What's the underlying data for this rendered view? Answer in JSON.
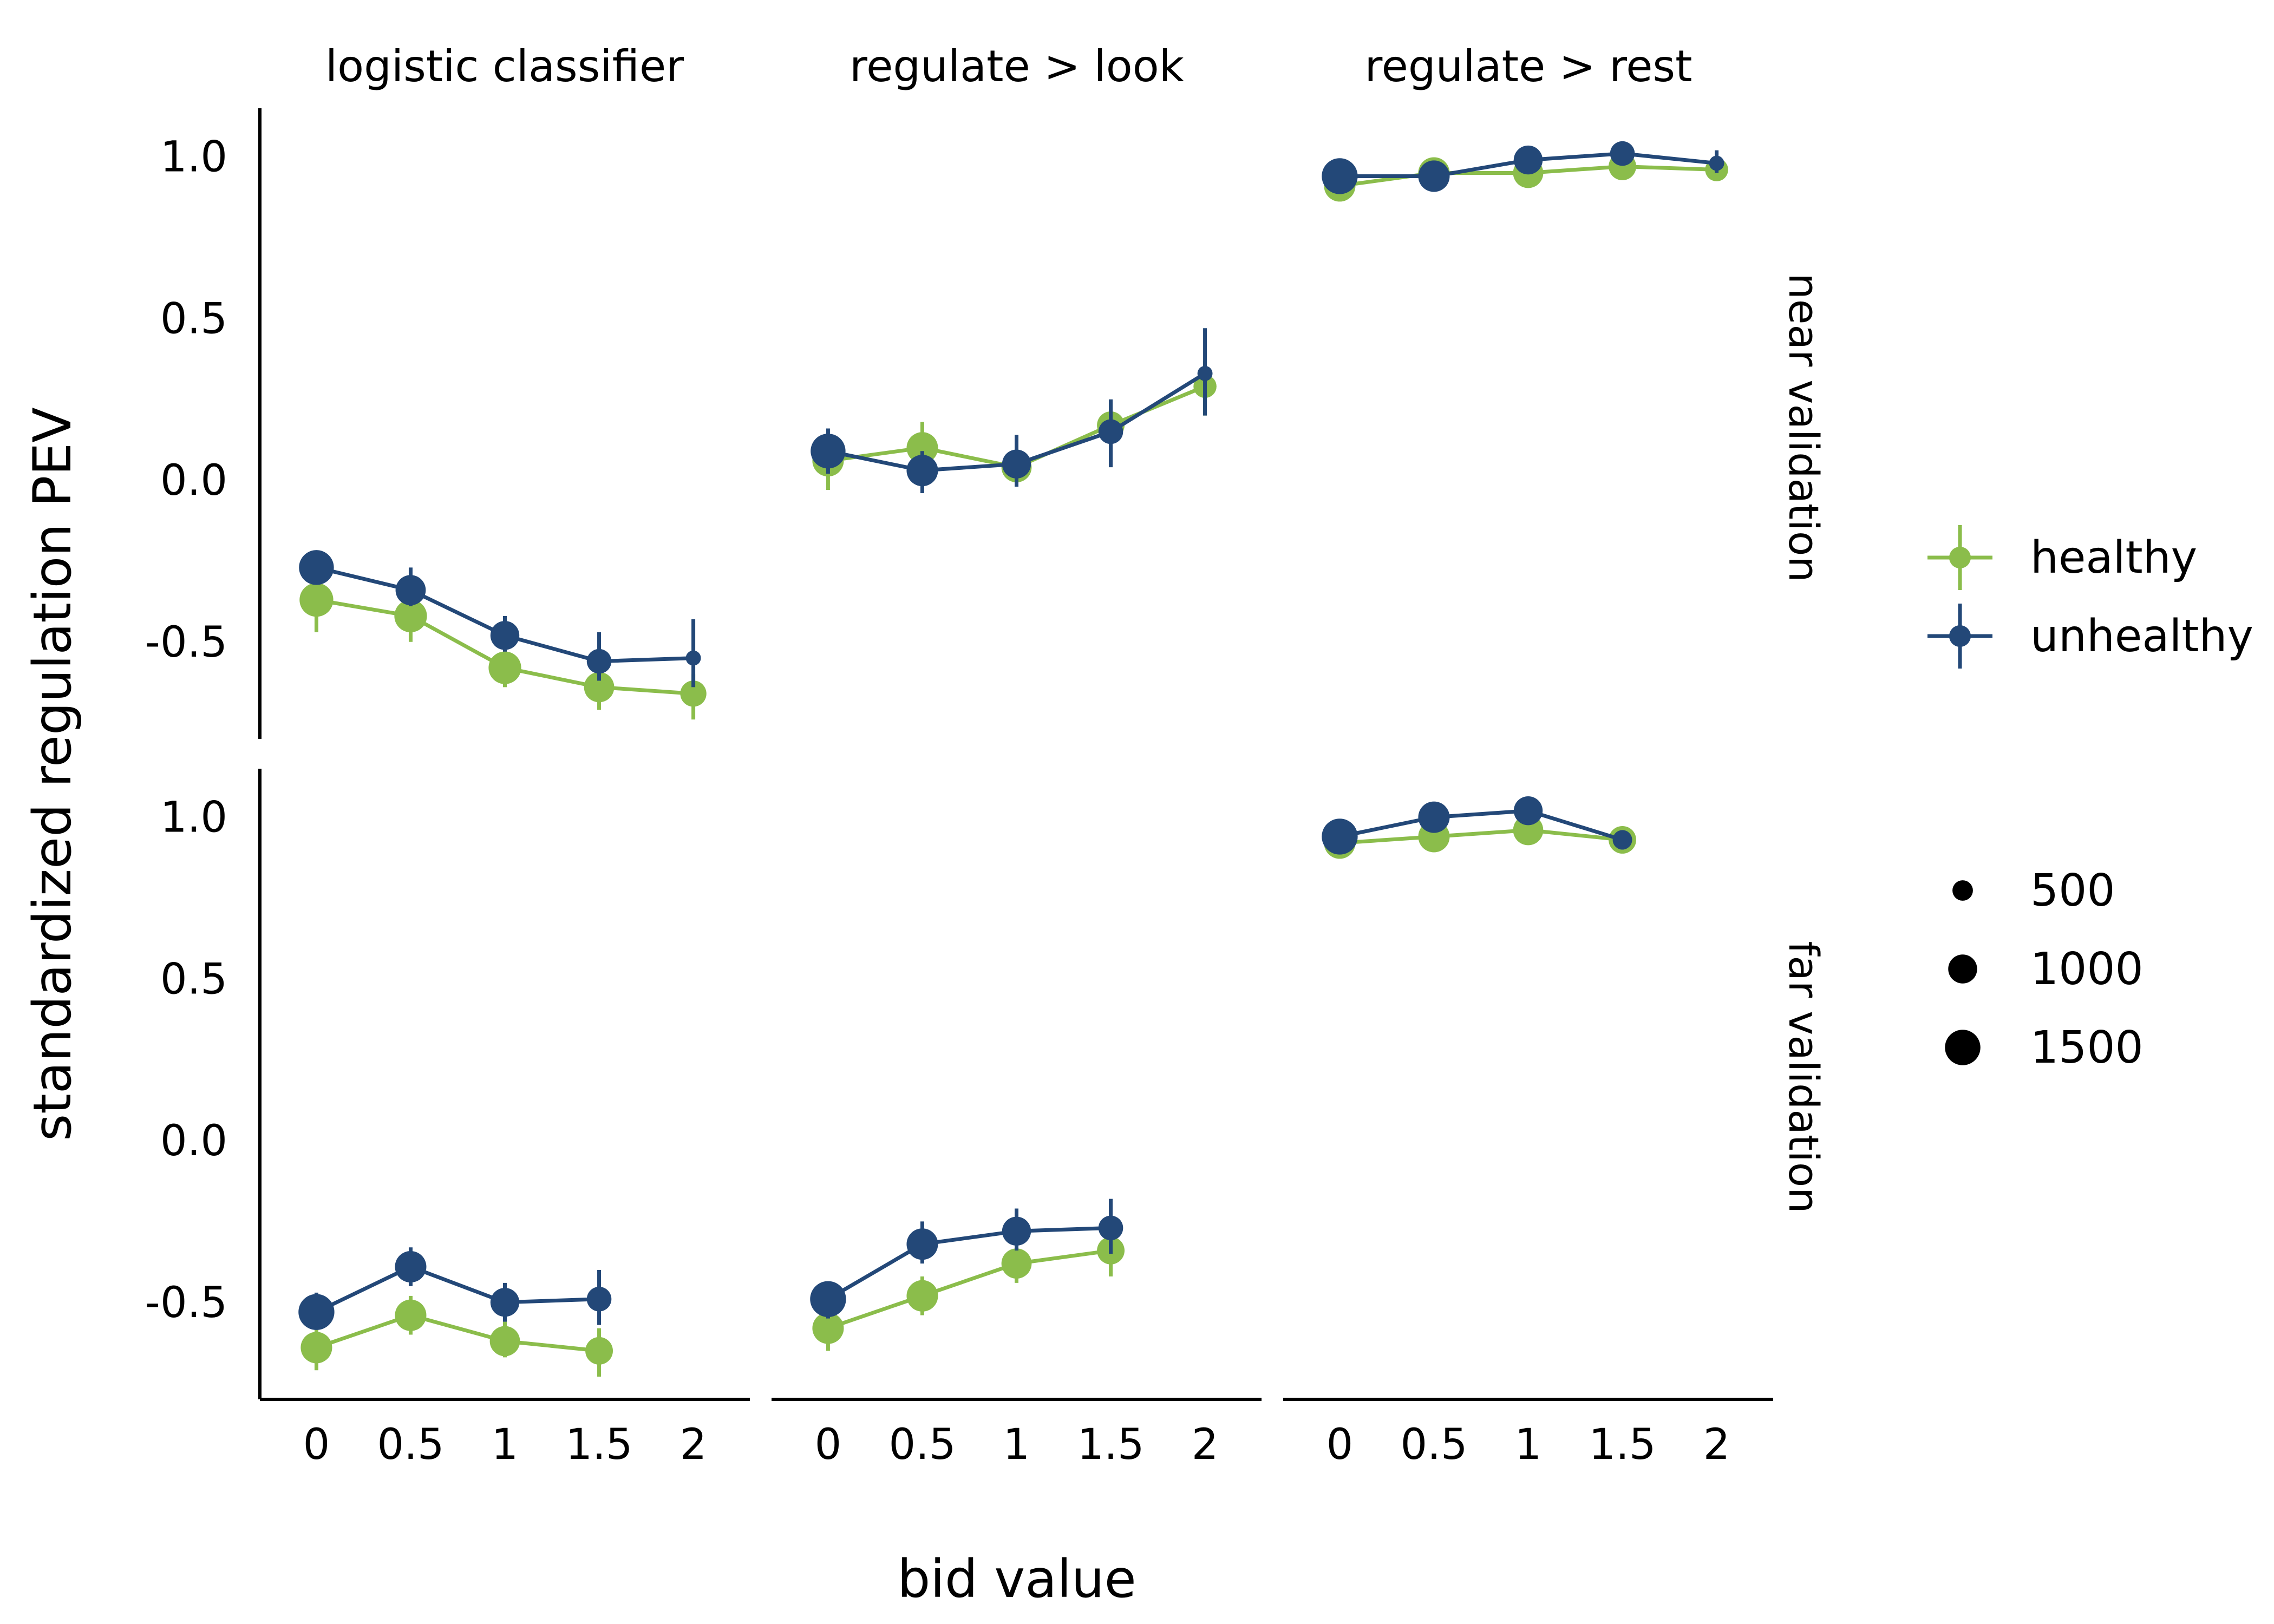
{
  "chart_data": {
    "type": "line",
    "xlabel": "bid value",
    "ylabel": "standardized regulation PEV",
    "x_ticks": [
      0,
      0.5,
      1,
      1.5,
      2
    ],
    "x_tick_labels": [
      "0",
      "0.5",
      "1",
      "1.5",
      "2"
    ],
    "y_ticks": [
      -0.5,
      0,
      0.5,
      1.0
    ],
    "y_tick_labels": [
      "-0.5",
      "0.0",
      "0.5",
      "1.0"
    ],
    "ylim": [
      -0.8,
      1.15
    ],
    "xlim": [
      -0.3,
      2.3
    ],
    "columns": [
      "logistic classifier",
      "regulate > look",
      "regulate > rest"
    ],
    "rows": [
      "near validation",
      "far validation"
    ],
    "colors": {
      "healthy": "#8bbd4b",
      "unhealthy": "#234878"
    },
    "legend_color": {
      "items": [
        "healthy",
        "unhealthy"
      ],
      "position": "right"
    },
    "legend_size": {
      "values": [
        500,
        1000,
        1500
      ],
      "labels": [
        "500",
        "1000",
        "1500"
      ],
      "position": "right"
    },
    "panels": [
      {
        "column": "logistic classifier",
        "row": "near validation",
        "series": [
          {
            "name": "healthy",
            "points": [
              {
                "x": 0,
                "y": -0.37,
                "lo": -0.47,
                "hi": -0.3,
                "n": 1500
              },
              {
                "x": 0.5,
                "y": -0.42,
                "lo": -0.5,
                "hi": -0.36,
                "n": 1400
              },
              {
                "x": 1,
                "y": -0.58,
                "lo": -0.64,
                "hi": -0.52,
                "n": 1400
              },
              {
                "x": 1.5,
                "y": -0.64,
                "lo": -0.71,
                "hi": -0.58,
                "n": 1200
              },
              {
                "x": 2,
                "y": -0.66,
                "lo": -0.74,
                "hi": -0.6,
                "n": 900
              }
            ]
          },
          {
            "name": "unhealthy",
            "points": [
              {
                "x": 0,
                "y": -0.27,
                "lo": -0.31,
                "hi": -0.23,
                "n": 1600
              },
              {
                "x": 0.5,
                "y": -0.34,
                "lo": -0.39,
                "hi": -0.27,
                "n": 1200
              },
              {
                "x": 1,
                "y": -0.48,
                "lo": -0.53,
                "hi": -0.42,
                "n": 1100
              },
              {
                "x": 1.5,
                "y": -0.56,
                "lo": -0.62,
                "hi": -0.47,
                "n": 800
              },
              {
                "x": 2,
                "y": -0.55,
                "lo": -0.64,
                "hi": -0.43,
                "n": 300
              }
            ]
          }
        ]
      },
      {
        "column": "regulate > look",
        "row": "near validation",
        "series": [
          {
            "name": "healthy",
            "points": [
              {
                "x": 0,
                "y": 0.06,
                "lo": -0.03,
                "hi": 0.14,
                "n": 1300
              },
              {
                "x": 0.5,
                "y": 0.1,
                "lo": 0.04,
                "hi": 0.18,
                "n": 1300
              },
              {
                "x": 1,
                "y": 0.04,
                "lo": -0.02,
                "hi": 0.1,
                "n": 1200
              },
              {
                "x": 1.5,
                "y": 0.17,
                "lo": 0.11,
                "hi": 0.24,
                "n": 1000
              },
              {
                "x": 2,
                "y": 0.29,
                "lo": 0.2,
                "hi": 0.37,
                "n": 700
              }
            ]
          },
          {
            "name": "unhealthy",
            "points": [
              {
                "x": 0,
                "y": 0.09,
                "lo": 0.02,
                "hi": 0.16,
                "n": 1600
              },
              {
                "x": 0.5,
                "y": 0.03,
                "lo": -0.04,
                "hi": 0.09,
                "n": 1300
              },
              {
                "x": 1,
                "y": 0.05,
                "lo": -0.02,
                "hi": 0.14,
                "n": 1100
              },
              {
                "x": 1.5,
                "y": 0.15,
                "lo": 0.04,
                "hi": 0.25,
                "n": 800
              },
              {
                "x": 2,
                "y": 0.33,
                "lo": 0.2,
                "hi": 0.47,
                "n": 300
              }
            ]
          }
        ]
      },
      {
        "column": "regulate > rest",
        "row": "near validation",
        "series": [
          {
            "name": "healthy",
            "points": [
              {
                "x": 0,
                "y": 0.91,
                "lo": 0.88,
                "hi": 0.94,
                "n": 1300
              },
              {
                "x": 0.5,
                "y": 0.95,
                "lo": 0.92,
                "hi": 0.98,
                "n": 1300
              },
              {
                "x": 1,
                "y": 0.95,
                "lo": 0.92,
                "hi": 0.98,
                "n": 1200
              },
              {
                "x": 1.5,
                "y": 0.97,
                "lo": 0.94,
                "hi": 1.0,
                "n": 1000
              },
              {
                "x": 2,
                "y": 0.96,
                "lo": 0.93,
                "hi": 0.99,
                "n": 700
              }
            ]
          },
          {
            "name": "unhealthy",
            "points": [
              {
                "x": 0,
                "y": 0.94,
                "lo": 0.91,
                "hi": 0.97,
                "n": 1700
              },
              {
                "x": 0.5,
                "y": 0.94,
                "lo": 0.91,
                "hi": 0.97,
                "n": 1300
              },
              {
                "x": 1,
                "y": 0.99,
                "lo": 0.96,
                "hi": 1.02,
                "n": 1100
              },
              {
                "x": 1.5,
                "y": 1.01,
                "lo": 0.98,
                "hi": 1.04,
                "n": 800
              },
              {
                "x": 2,
                "y": 0.98,
                "lo": 0.95,
                "hi": 1.02,
                "n": 300
              }
            ]
          }
        ]
      },
      {
        "column": "logistic classifier",
        "row": "far validation",
        "series": [
          {
            "name": "healthy",
            "points": [
              {
                "x": 0,
                "y": -0.64,
                "lo": -0.71,
                "hi": -0.58,
                "n": 1300
              },
              {
                "x": 0.5,
                "y": -0.54,
                "lo": -0.6,
                "hi": -0.48,
                "n": 1300
              },
              {
                "x": 1,
                "y": -0.62,
                "lo": -0.67,
                "hi": -0.56,
                "n": 1200
              },
              {
                "x": 1.5,
                "y": -0.65,
                "lo": -0.73,
                "hi": -0.58,
                "n": 1000
              }
            ]
          },
          {
            "name": "unhealthy",
            "points": [
              {
                "x": 0,
                "y": -0.53,
                "lo": -0.58,
                "hi": -0.47,
                "n": 1700
              },
              {
                "x": 0.5,
                "y": -0.39,
                "lo": -0.45,
                "hi": -0.33,
                "n": 1300
              },
              {
                "x": 1,
                "y": -0.5,
                "lo": -0.56,
                "hi": -0.44,
                "n": 1100
              },
              {
                "x": 1.5,
                "y": -0.49,
                "lo": -0.57,
                "hi": -0.4,
                "n": 800
              }
            ]
          }
        ]
      },
      {
        "column": "regulate > look",
        "row": "far validation",
        "series": [
          {
            "name": "healthy",
            "points": [
              {
                "x": 0,
                "y": -0.58,
                "lo": -0.65,
                "hi": -0.52,
                "n": 1300
              },
              {
                "x": 0.5,
                "y": -0.48,
                "lo": -0.54,
                "hi": -0.42,
                "n": 1300
              },
              {
                "x": 1,
                "y": -0.38,
                "lo": -0.44,
                "hi": -0.32,
                "n": 1200
              },
              {
                "x": 1.5,
                "y": -0.34,
                "lo": -0.42,
                "hi": -0.27,
                "n": 1000
              }
            ]
          },
          {
            "name": "unhealthy",
            "points": [
              {
                "x": 0,
                "y": -0.49,
                "lo": -0.55,
                "hi": -0.44,
                "n": 1700
              },
              {
                "x": 0.5,
                "y": -0.32,
                "lo": -0.38,
                "hi": -0.25,
                "n": 1300
              },
              {
                "x": 1,
                "y": -0.28,
                "lo": -0.34,
                "hi": -0.21,
                "n": 1100
              },
              {
                "x": 1.5,
                "y": -0.27,
                "lo": -0.35,
                "hi": -0.18,
                "n": 800
              }
            ]
          }
        ]
      },
      {
        "column": "regulate > rest",
        "row": "far validation",
        "series": [
          {
            "name": "healthy",
            "points": [
              {
                "x": 0,
                "y": 0.92,
                "lo": 0.89,
                "hi": 0.95,
                "n": 1300
              },
              {
                "x": 0.5,
                "y": 0.94,
                "lo": 0.91,
                "hi": 0.97,
                "n": 1300
              },
              {
                "x": 1,
                "y": 0.96,
                "lo": 0.93,
                "hi": 0.99,
                "n": 1200
              },
              {
                "x": 1.5,
                "y": 0.93,
                "lo": 0.9,
                "hi": 0.96,
                "n": 1000
              }
            ]
          },
          {
            "name": "unhealthy",
            "points": [
              {
                "x": 0,
                "y": 0.94,
                "lo": 0.91,
                "hi": 0.97,
                "n": 1700
              },
              {
                "x": 0.5,
                "y": 1.0,
                "lo": 0.97,
                "hi": 1.03,
                "n": 1300
              },
              {
                "x": 1,
                "y": 1.02,
                "lo": 0.99,
                "hi": 1.05,
                "n": 1100
              },
              {
                "x": 1.5,
                "y": 0.93,
                "lo": 0.9,
                "hi": 0.96,
                "n": 500
              }
            ]
          }
        ]
      }
    ]
  }
}
